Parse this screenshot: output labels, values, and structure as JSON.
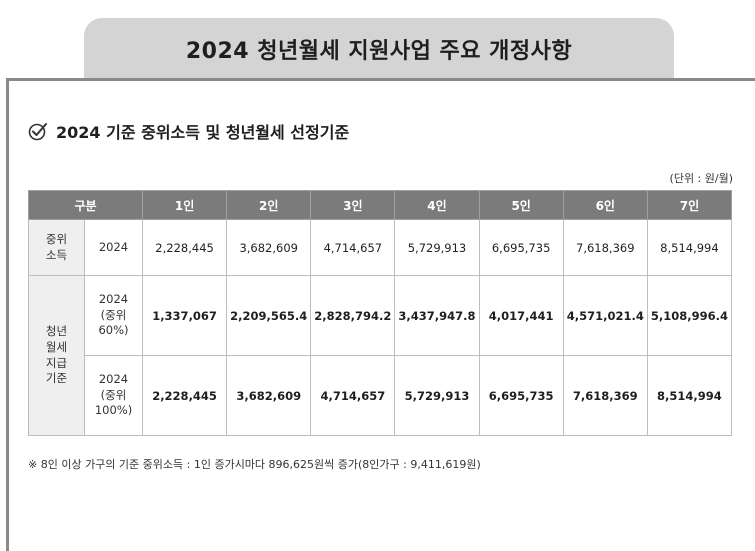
{
  "header": {
    "title": "2024 청년월세 지원사업 주요 개정사항"
  },
  "section": {
    "title": "2024 기준 중위소득 및 청년월세 선정기준",
    "check_icon": "check-circle-icon"
  },
  "unit_label": "(단위 : 원/월)",
  "table": {
    "headers": [
      "구분",
      "1인",
      "2인",
      "3인",
      "4인",
      "5인",
      "6인",
      "7인"
    ],
    "median_row": {
      "label": "중위\n소득",
      "sub": "2024",
      "values": [
        "2,228,445",
        "3,682,609",
        "4,714,657",
        "5,729,913",
        "6,695,735",
        "7,618,369",
        "8,514,994"
      ]
    },
    "support_label": "청년\n월세\n지급\n기준",
    "support_rows": [
      {
        "sub": "2024\n(중위\n60%)",
        "values": [
          "1,337,067",
          "2,209,565.4",
          "2,828,794.2",
          "3,437,947.8",
          "4,017,441",
          "4,571,021.4",
          "5,108,996.4"
        ]
      },
      {
        "sub": "2024\n(중위\n100%)",
        "values": [
          "2,228,445",
          "3,682,609",
          "4,714,657",
          "5,729,913",
          "6,695,735",
          "7,618,369",
          "8,514,994"
        ]
      }
    ]
  },
  "footnote": "※ 8인 이상 가구의 기준 중위소득 : 1인 증가시마다 896,625원씩 증가(8인가구 : 9,411,619원)"
}
